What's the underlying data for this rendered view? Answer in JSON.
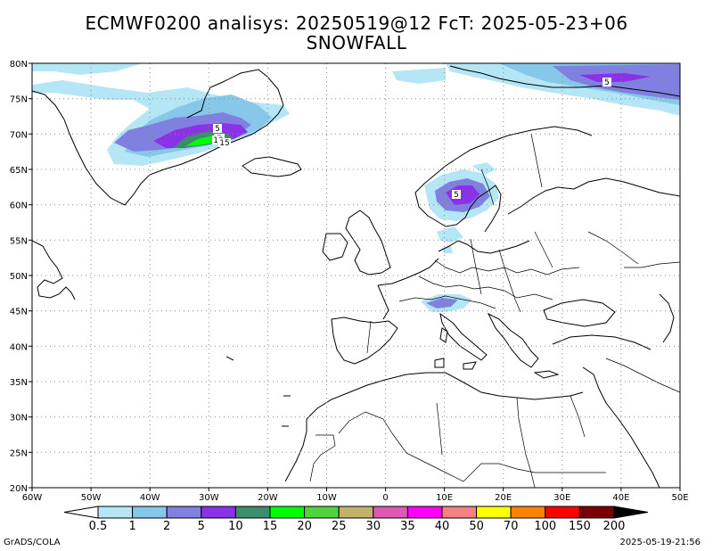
{
  "title_line1": "ECMWF0200 analisys: 20250519@12 FcT: 2025-05-23+06",
  "title_line2": "SNOWFALL",
  "lat_labels": [
    "80N",
    "75N",
    "70N",
    "65N",
    "60N",
    "55N",
    "50N",
    "45N",
    "40N",
    "35N",
    "30N",
    "25N",
    "20N"
  ],
  "lon_labels": [
    "60W",
    "50W",
    "40W",
    "30W",
    "20W",
    "10W",
    "0",
    "10E",
    "20E",
    "30E",
    "40E",
    "50E"
  ],
  "contour_labels": [
    "5",
    "5",
    "10",
    "15",
    "5",
    "5"
  ],
  "legend": {
    "values": [
      "0.5",
      "1",
      "2",
      "5",
      "10",
      "15",
      "20",
      "25",
      "30",
      "35",
      "40",
      "50",
      "70",
      "100",
      "150",
      "200"
    ],
    "colors": [
      "#b4e6f5",
      "#87c8ea",
      "#8080e0",
      "#8a32e6",
      "#3c8c6e",
      "#00ff00",
      "#52d23c",
      "#c2b26e",
      "#dc5ab4",
      "#ff00ff",
      "#f58282",
      "#ffff00",
      "#ff8200",
      "#ff0000",
      "#780000"
    ]
  },
  "footer_left": "GrADS/COLA",
  "footer_right": "2025-05-19-21:56"
}
